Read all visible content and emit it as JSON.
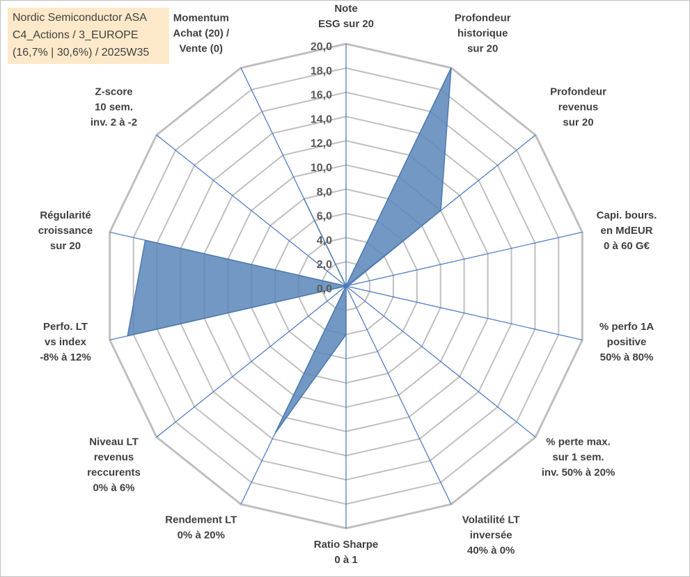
{
  "header": {
    "line1": "Nordic Semiconductor ASA",
    "line2": "C4_Actions / 3_EUROPE",
    "line3": "(16,7% | 30,6%) / 2025W35"
  },
  "colors": {
    "grid": "#bfbfbf",
    "spoke": "#4472c4",
    "fill": "#5b86b8",
    "background_box": "#fde9c9"
  },
  "chart_data": {
    "type": "radar",
    "rmin": 0,
    "rmax": 20,
    "tick_step": 2,
    "tick_labels": [
      "0,0",
      "2,0",
      "4,0",
      "6,0",
      "8,0",
      "10,0",
      "12,0",
      "14,0",
      "16,0",
      "18,0",
      "20,0"
    ],
    "axes": [
      {
        "label": [
          "Note",
          "ESG sur 20"
        ],
        "value": 0
      },
      {
        "label": [
          "Profondeur",
          "historique",
          "sur 20"
        ],
        "value": 20
      },
      {
        "label": [
          "Profondeur",
          "revenus",
          "sur 20"
        ],
        "value": 10
      },
      {
        "label": [
          "Capi. bours.",
          "en MdEUR",
          "0 à 60 G€"
        ],
        "value": 0.2
      },
      {
        "label": [
          "% perfo 1A",
          "positive",
          "50% à 80%"
        ],
        "value": 0
      },
      {
        "label": [
          "% perte max.",
          "sur 1 sem.",
          "inv. 50% à 20%"
        ],
        "value": 0
      },
      {
        "label": [
          "Volatilité LT",
          "inversée",
          "40% à 0%"
        ],
        "value": 0
      },
      {
        "label": [
          "Ratio Sharpe",
          "0 à 1"
        ],
        "value": 4
      },
      {
        "label": [
          "Rendement LT",
          "0% à 20%"
        ],
        "value": 13.5
      },
      {
        "label": [
          "Niveau LT",
          "revenus",
          "reccurents",
          "0% à 6%"
        ],
        "value": 0
      },
      {
        "label": [
          "Perfo. LT",
          "vs index",
          "-8% à 12%"
        ],
        "value": 18.5
      },
      {
        "label": [
          "Régularité",
          "croissance",
          "sur 20"
        ],
        "value": 17
      },
      {
        "label": [
          "Z-score",
          "10 sem.",
          "inv. 2 à -2"
        ],
        "value": 0
      },
      {
        "label": [
          "Momentum",
          "Achat (20) /",
          "Vente (0)"
        ],
        "value": 8
      }
    ]
  }
}
